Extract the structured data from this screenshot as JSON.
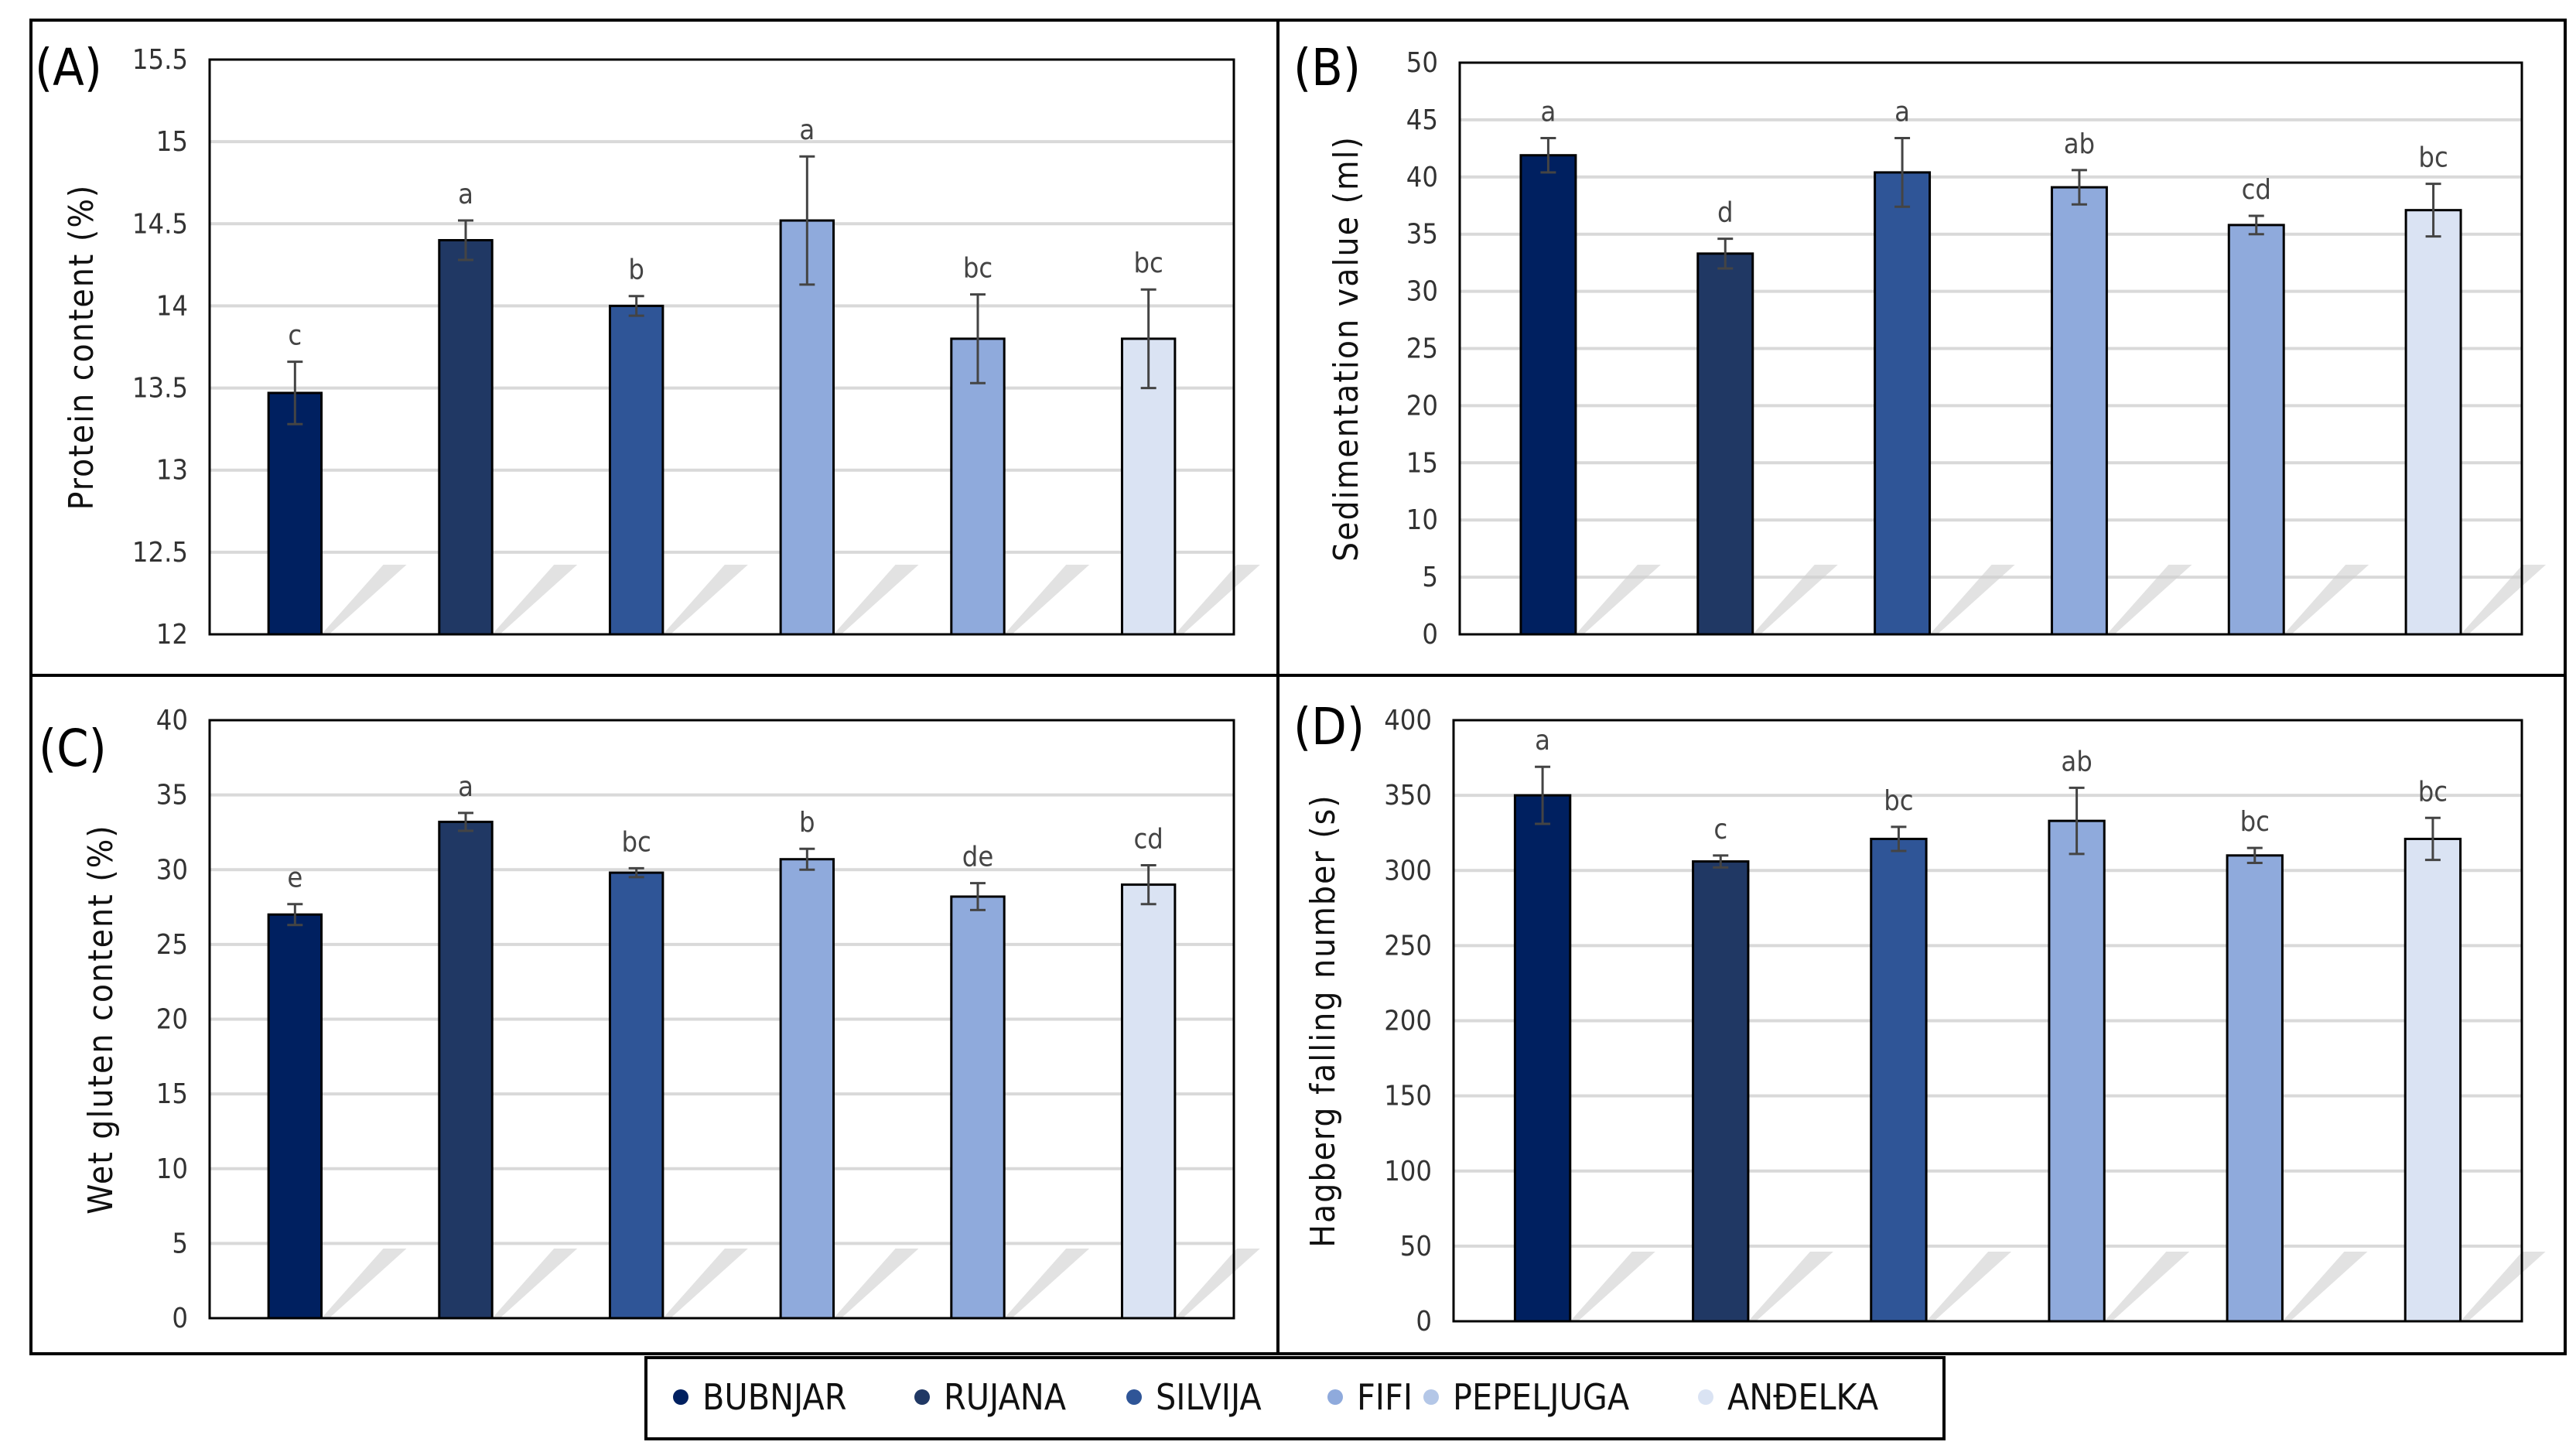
{
  "legend": [
    "BUBNJAR",
    "RUJANA",
    "SILVIJA",
    "FIFI",
    "PEPELJUGA",
    "ANĐELKA"
  ],
  "colors": [
    "#002060",
    "#203864",
    "#2F5597",
    "#8FAADC",
    "#8FAADC",
    "#DAE3F3"
  ],
  "chart_data": [
    {
      "type": "bar",
      "panel": "(A)",
      "ylabel": "Protein content (%)",
      "categories": [
        "BUBNJAR",
        "RUJANA",
        "SILVIJA",
        "FIFI",
        "PEPELJUGA",
        "ANĐELKA"
      ],
      "values": [
        13.47,
        14.4,
        14.0,
        14.52,
        13.8,
        13.8
      ],
      "errors": [
        0.19,
        0.12,
        0.06,
        0.39,
        0.27,
        0.3
      ],
      "letters": [
        "c",
        "a",
        "b",
        "a",
        "bc",
        "bc"
      ],
      "ylim": [
        12,
        15.5
      ],
      "ticks": [
        "12",
        "12.5",
        "13",
        "13.5",
        "14",
        "14.5",
        "15",
        "15.5"
      ],
      "grid": true
    },
    {
      "type": "bar",
      "panel": "(B)",
      "ylabel": "Sedimentation value (ml)",
      "categories": [
        "BUBNJAR",
        "RUJANA",
        "SILVIJA",
        "FIFI",
        "PEPELJUGA",
        "ANĐELKA"
      ],
      "values": [
        41.9,
        33.3,
        40.4,
        39.1,
        35.8,
        37.1
      ],
      "errors": [
        1.5,
        1.3,
        3.0,
        1.5,
        0.8,
        2.3
      ],
      "letters": [
        "a",
        "d",
        "a",
        "ab",
        "cd",
        "bc"
      ],
      "ylim": [
        0,
        50
      ],
      "ticks": [
        "0",
        "5",
        "10",
        "15",
        "20",
        "25",
        "30",
        "35",
        "40",
        "45",
        "50"
      ],
      "grid": true
    },
    {
      "type": "bar",
      "panel": "(C)",
      "ylabel": "Wet gluten content (%)",
      "categories": [
        "BUBNJAR",
        "RUJANA",
        "SILVIJA",
        "FIFI",
        "PEPELJUGA",
        "ANĐELKA"
      ],
      "values": [
        27.0,
        33.2,
        29.8,
        30.7,
        28.2,
        29.0
      ],
      "errors": [
        0.7,
        0.6,
        0.3,
        0.7,
        0.9,
        1.3
      ],
      "letters": [
        "e",
        "a",
        "bc",
        "b",
        "de",
        "cd"
      ],
      "ylim": [
        0,
        40
      ],
      "ticks": [
        "0",
        "5",
        "10",
        "15",
        "20",
        "25",
        "30",
        "35",
        "40"
      ],
      "grid": true
    },
    {
      "type": "bar",
      "panel": "(D)",
      "ylabel": "Hagberg falling number (s)",
      "categories": [
        "BUBNJAR",
        "RUJANA",
        "SILVIJA",
        "FIFI",
        "PEPELJUGA",
        "ANĐELKA"
      ],
      "values": [
        350,
        306,
        321,
        333,
        310,
        321
      ],
      "errors": [
        19,
        4,
        8,
        22,
        5,
        14
      ],
      "letters": [
        "a",
        "c",
        "bc",
        "ab",
        "bc",
        "bc"
      ],
      "ylim": [
        0,
        400
      ],
      "ticks": [
        "0",
        "50",
        "100",
        "150",
        "200",
        "250",
        "300",
        "350",
        "400"
      ],
      "grid": true
    }
  ]
}
